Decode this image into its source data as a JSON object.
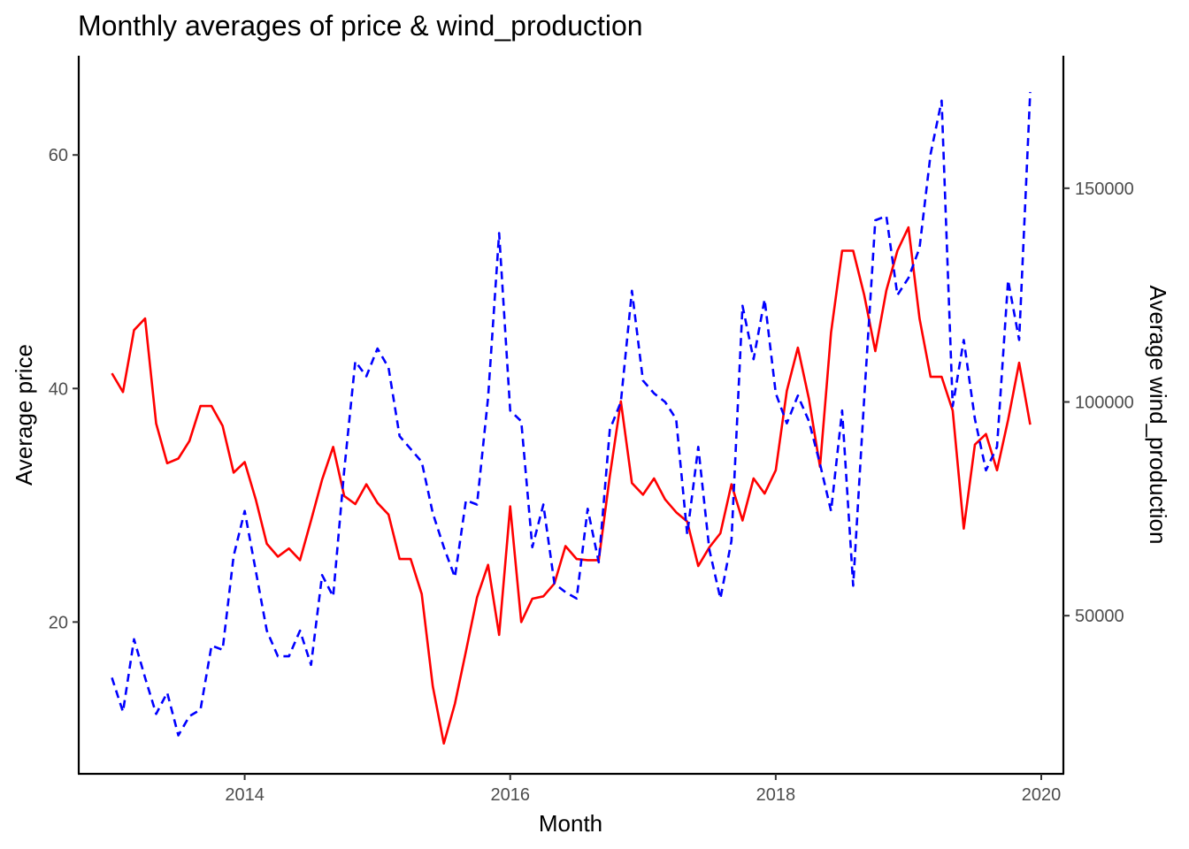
{
  "chart_data": {
    "type": "line",
    "title": "Monthly averages of price & wind_production",
    "xlabel": "Month",
    "ylabel": "Average price",
    "y2label": "Average wind_production",
    "xlim": [
      "2012-10-01",
      "2020-03-01"
    ],
    "ylim": [
      7,
      68.5
    ],
    "y2lim": [
      13000,
      181000
    ],
    "xticks": [
      "2014",
      "2016",
      "2018",
      "2020"
    ],
    "yticks": [
      20,
      40,
      60
    ],
    "y2ticks": [
      50000,
      100000,
      150000
    ],
    "grid": false,
    "legend": "none",
    "x": [
      "2013-01",
      "2013-02",
      "2013-03",
      "2013-04",
      "2013-05",
      "2013-06",
      "2013-07",
      "2013-08",
      "2013-09",
      "2013-10",
      "2013-11",
      "2013-12",
      "2014-01",
      "2014-02",
      "2014-03",
      "2014-04",
      "2014-05",
      "2014-06",
      "2014-07",
      "2014-08",
      "2014-09",
      "2014-10",
      "2014-11",
      "2014-12",
      "2015-01",
      "2015-02",
      "2015-03",
      "2015-04",
      "2015-05",
      "2015-06",
      "2015-07",
      "2015-08",
      "2015-09",
      "2015-10",
      "2015-11",
      "2015-12",
      "2016-01",
      "2016-02",
      "2016-03",
      "2016-04",
      "2016-05",
      "2016-06",
      "2016-07",
      "2016-08",
      "2016-09",
      "2016-10",
      "2016-11",
      "2016-12",
      "2017-01",
      "2017-02",
      "2017-03",
      "2017-04",
      "2017-05",
      "2017-06",
      "2017-07",
      "2017-08",
      "2017-09",
      "2017-10",
      "2017-11",
      "2017-12",
      "2018-01",
      "2018-02",
      "2018-03",
      "2018-04",
      "2018-05",
      "2018-06",
      "2018-07",
      "2018-08",
      "2018-09",
      "2018-10",
      "2018-11",
      "2018-12",
      "2019-01",
      "2019-02",
      "2019-03",
      "2019-04",
      "2019-05",
      "2019-06",
      "2019-07",
      "2019-08",
      "2019-09",
      "2019-10",
      "2019-11",
      "2019-12"
    ],
    "series": [
      {
        "axis": "left",
        "color": "#ff0000",
        "style": "solid",
        "values": [
          41.3,
          39.7,
          45.0,
          46.0,
          37.0,
          33.6,
          34.0,
          35.5,
          38.5,
          38.5,
          36.8,
          32.8,
          33.7,
          30.5,
          26.7,
          25.6,
          26.3,
          25.3,
          28.7,
          32.2,
          35.0,
          30.8,
          30.1,
          31.8,
          30.2,
          29.2,
          25.4,
          25.4,
          22.4,
          14.5,
          9.6,
          13.0,
          17.5,
          22.1,
          24.9,
          18.9,
          29.9,
          20.0,
          22.0,
          22.2,
          23.3,
          26.5,
          25.4,
          25.3,
          25.3,
          32.5,
          38.9,
          31.9,
          30.9,
          32.3,
          30.5,
          29.4,
          28.6,
          24.8,
          26.4,
          27.6,
          31.8,
          28.7,
          32.3,
          31.0,
          33.0,
          39.8,
          43.5,
          39.1,
          33.3,
          44.8,
          51.8,
          51.8,
          48.0,
          43.2,
          48.4,
          51.8,
          53.8,
          46.0,
          41.0,
          41.0,
          38.1,
          28.0,
          35.2,
          36.1,
          33.0,
          37.3,
          42.2,
          36.9
        ]
      },
      {
        "axis": "right",
        "color": "#0000ff",
        "style": "dashed",
        "values": [
          35500,
          27500,
          44500,
          35500,
          27000,
          32000,
          22000,
          26500,
          28000,
          43000,
          42000,
          64000,
          74500,
          60500,
          46500,
          40500,
          40500,
          46500,
          38500,
          59500,
          54500,
          84000,
          109500,
          106000,
          112500,
          108000,
          92000,
          89000,
          86000,
          74000,
          66000,
          59000,
          77000,
          76000,
          101000,
          139500,
          98000,
          95500,
          66000,
          76000,
          57500,
          55500,
          54000,
          75000,
          62500,
          93500,
          100000,
          126000,
          105000,
          102000,
          100000,
          96000,
          69000,
          89500,
          65500,
          54000,
          67500,
          122500,
          110000,
          124000,
          102000,
          95000,
          101500,
          95500,
          85500,
          74500,
          98000,
          57000,
          101000,
          142500,
          143500,
          125000,
          129000,
          136000,
          158000,
          170500,
          99000,
          114500,
          96000,
          84000,
          89500,
          128500,
          114500,
          172500
        ]
      }
    ]
  }
}
